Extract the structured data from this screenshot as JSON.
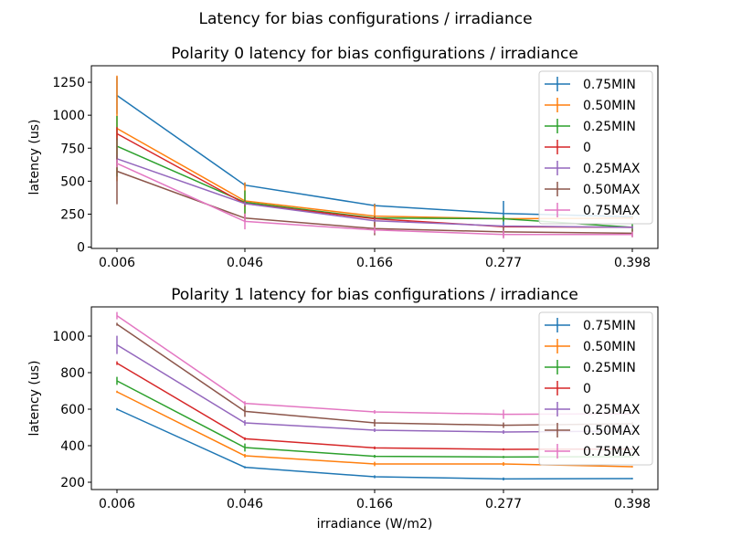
{
  "figure": {
    "suptitle": "Latency for bias configurations / irradiance"
  },
  "colors": {
    "0.75MIN": "#1f77b4",
    "0.50MIN": "#ff7f0e",
    "0.25MIN": "#2ca02c",
    "0": "#d62728",
    "0.25MAX": "#9467bd",
    "0.50MAX": "#8c564b",
    "0.75MAX": "#e377c2"
  },
  "chart_data": [
    {
      "type": "line",
      "title": "Polarity 0 latency for bias configurations / irradiance",
      "xlabel": "",
      "ylabel": "latency (us)",
      "categories": [
        "0.006",
        "0.046",
        "0.166",
        "0.277",
        "0.398"
      ],
      "ylim": [
        -10,
        1375
      ],
      "yticks": [
        0,
        250,
        500,
        750,
        1000,
        1250
      ],
      "yticklabels": [
        "0",
        "250",
        "500",
        "750",
        "1000",
        "1250"
      ],
      "legend": "top-right",
      "series": [
        {
          "name": "0.75MIN",
          "values": [
            1150,
            470,
            315,
            255,
            230
          ],
          "err": [
            140,
            20,
            15,
            95,
            10
          ]
        },
        {
          "name": "0.50MIN",
          "values": [
            900,
            350,
            235,
            215,
            220
          ],
          "err": [
            400,
            140,
            90,
            20,
            10
          ]
        },
        {
          "name": "0.25MIN",
          "values": [
            765,
            340,
            220,
            215,
            150
          ],
          "err": [
            230,
            90,
            15,
            20,
            30
          ]
        },
        {
          "name": "0",
          "values": [
            860,
            330,
            215,
            155,
            150
          ],
          "err": [
            50,
            20,
            15,
            10,
            10
          ]
        },
        {
          "name": "0.25MAX",
          "values": [
            670,
            330,
            200,
            160,
            150
          ],
          "err": [
            30,
            15,
            15,
            10,
            10
          ]
        },
        {
          "name": "0.50MAX",
          "values": [
            575,
            220,
            140,
            115,
            105
          ],
          "err": [
            250,
            25,
            50,
            40,
            30
          ]
        },
        {
          "name": "0.75MAX",
          "values": [
            635,
            195,
            130,
            95,
            95
          ],
          "err": [
            30,
            60,
            25,
            30,
            20
          ]
        }
      ]
    },
    {
      "type": "line",
      "title": "Polarity 1 latency for bias configurations / irradiance",
      "xlabel": "irradiance (W/m2)",
      "ylabel": "latency (us)",
      "categories": [
        "0.006",
        "0.046",
        "0.166",
        "0.277",
        "0.398"
      ],
      "ylim": [
        160,
        1160
      ],
      "yticks": [
        200,
        400,
        600,
        800,
        1000
      ],
      "yticklabels": [
        "200",
        "400",
        "600",
        "800",
        "1000"
      ],
      "legend": "top-right",
      "series": [
        {
          "name": "0.75MIN",
          "values": [
            600,
            282,
            230,
            218,
            220
          ],
          "err": [
            6,
            6,
            8,
            8,
            4
          ]
        },
        {
          "name": "0.50MIN",
          "values": [
            695,
            345,
            300,
            300,
            285
          ],
          "err": [
            6,
            10,
            12,
            10,
            4
          ]
        },
        {
          "name": "0.25MIN",
          "values": [
            755,
            390,
            342,
            338,
            340
          ],
          "err": [
            22,
            22,
            8,
            6,
            4
          ]
        },
        {
          "name": "0",
          "values": [
            852,
            438,
            388,
            380,
            382
          ],
          "err": [
            10,
            8,
            8,
            6,
            4
          ]
        },
        {
          "name": "0.25MAX",
          "values": [
            952,
            525,
            485,
            475,
            480
          ],
          "err": [
            50,
            15,
            10,
            10,
            8
          ]
        },
        {
          "name": "0.50MAX",
          "values": [
            1065,
            588,
            525,
            512,
            520
          ],
          "err": [
            8,
            30,
            20,
            15,
            8
          ]
        },
        {
          "name": "0.75MAX",
          "values": [
            1112,
            632,
            585,
            572,
            575
          ],
          "err": [
            20,
            12,
            10,
            25,
            8
          ]
        }
      ]
    }
  ]
}
